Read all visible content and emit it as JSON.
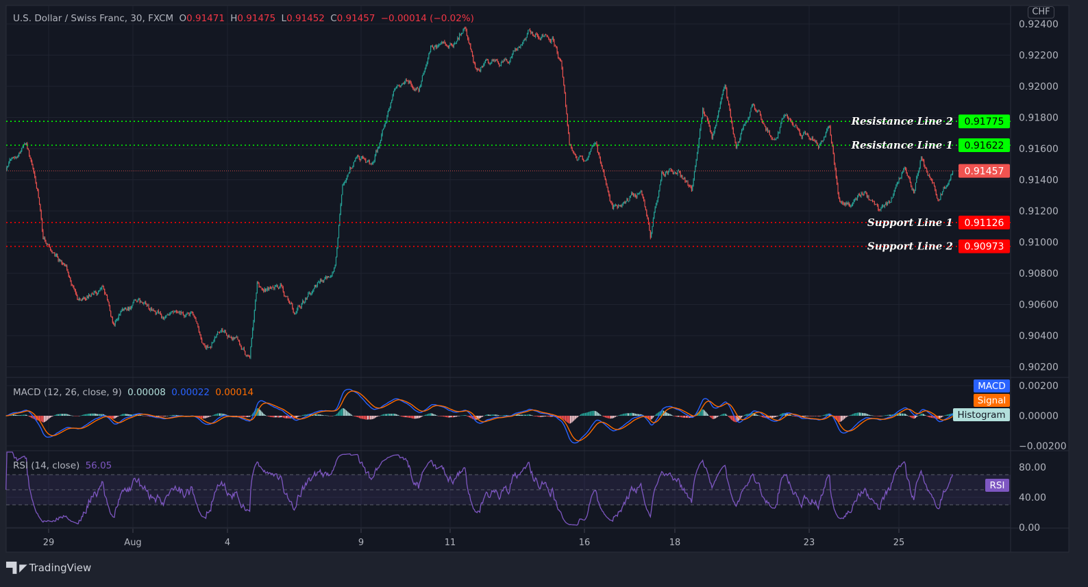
{
  "header": {
    "symbol": "U.S. Dollar / Swiss Franc, 30, FXCM",
    "open_label": "O",
    "open": "0.91471",
    "high_label": "H",
    "high": "0.91475",
    "low_label": "L",
    "low": "0.91452",
    "close_label": "C",
    "close": "0.91457",
    "change": "−0.00014 (−0.02%)"
  },
  "currency_badge": "CHF",
  "macd_legend": {
    "title": "MACD (12, 26, close, 9)",
    "histogram": "0.00008",
    "macd": "0.00022",
    "signal": "0.00014"
  },
  "rsi_legend": {
    "title": "RSI (14, close)",
    "value": "56.05"
  },
  "footer": {
    "brand": "TradingView"
  },
  "colors": {
    "up": "#26a69a",
    "down": "#ef5350",
    "resistance": "#00ff00",
    "support": "#ff0000",
    "last_price": "#f05350",
    "macd": "#2962ff",
    "signal": "#ff6d00",
    "histogram": "#b2dfdb",
    "rsi": "#7e57c2"
  },
  "chart_data": {
    "type": "candlestick",
    "title": "U.S. Dollar / Swiss Franc, 30, FXCM",
    "interval": "30",
    "price_axis": {
      "ticks": [
        "0.92400",
        "0.92200",
        "0.92000",
        "0.91800",
        "0.91600",
        "0.91400",
        "0.91200",
        "0.91000",
        "0.90800",
        "0.90600",
        "0.90400",
        "0.90200"
      ],
      "ylim": [
        0.9017,
        0.9246
      ]
    },
    "time_axis": {
      "ticks": [
        "29",
        "Aug",
        "4",
        "9",
        "11",
        "16",
        "18",
        "23",
        "25"
      ]
    },
    "price_path": [
      {
        "t": "Jul 28 01:00",
        "price": 0.9148
      },
      {
        "t": "Jul 28 12:00",
        "price": 0.9165
      },
      {
        "t": "Jul 28 18:00",
        "price": 0.9132
      },
      {
        "t": "Jul 28 21:00",
        "price": 0.9102
      },
      {
        "t": "Jul 29 09:00",
        "price": 0.9086
      },
      {
        "t": "Jul 29 17:00",
        "price": 0.9062
      },
      {
        "t": "Jul 30 07:00",
        "price": 0.9071
      },
      {
        "t": "Jul 30 13:00",
        "price": 0.9049
      },
      {
        "t": "Aug 2 02:00",
        "price": 0.9062
      },
      {
        "t": "Aug 2 16:00",
        "price": 0.9051
      },
      {
        "t": "Aug 3 06:00",
        "price": 0.9053
      },
      {
        "t": "Aug 3 13:00",
        "price": 0.9029
      },
      {
        "t": "Aug 3 20:00",
        "price": 0.9044
      },
      {
        "t": "Aug 4 07:00",
        "price": 0.9036
      },
      {
        "t": "Aug 4 12:00",
        "price": 0.9025
      },
      {
        "t": "Aug 4 16:00",
        "price": 0.9071
      },
      {
        "t": "Aug 5 05:00",
        "price": 0.9071
      },
      {
        "t": "Aug 5 12:00",
        "price": 0.9055
      },
      {
        "t": "Aug 5 23:00",
        "price": 0.9071
      },
      {
        "t": "Aug 6 10:00",
        "price": 0.9084
      },
      {
        "t": "Aug 6 14:00",
        "price": 0.9141
      },
      {
        "t": "Aug 6 21:00",
        "price": 0.9154
      },
      {
        "t": "Aug 9 07:00",
        "price": 0.915
      },
      {
        "t": "Aug 9 12:00",
        "price": 0.9172
      },
      {
        "t": "Aug 9 18:00",
        "price": 0.92
      },
      {
        "t": "Aug 10 01:00",
        "price": 0.9203
      },
      {
        "t": "Aug 10 07:00",
        "price": 0.9198
      },
      {
        "t": "Aug 10 14:00",
        "price": 0.9227
      },
      {
        "t": "Aug 11 01:00",
        "price": 0.9225
      },
      {
        "t": "Aug 11 08:00",
        "price": 0.9238
      },
      {
        "t": "Aug 11 14:00",
        "price": 0.9211
      },
      {
        "t": "Aug 11 23:00",
        "price": 0.9216
      },
      {
        "t": "Aug 12 07:00",
        "price": 0.9214
      },
      {
        "t": "Aug 12 18:00",
        "price": 0.9236
      },
      {
        "t": "Aug 13 07:00",
        "price": 0.9231
      },
      {
        "t": "Aug 13 12:00",
        "price": 0.9211
      },
      {
        "t": "Aug 13 16:00",
        "price": 0.9163
      },
      {
        "t": "Aug 13 23:00",
        "price": 0.9152
      },
      {
        "t": "Aug 16 06:00",
        "price": 0.9161
      },
      {
        "t": "Aug 16 12:00",
        "price": 0.9137
      },
      {
        "t": "Aug 16 15:00",
        "price": 0.9121
      },
      {
        "t": "Aug 16 23:00",
        "price": 0.9126
      },
      {
        "t": "Aug 17 06:00",
        "price": 0.9134
      },
      {
        "t": "Aug 17 11:00",
        "price": 0.9104
      },
      {
        "t": "Aug 17 17:00",
        "price": 0.9145
      },
      {
        "t": "Aug 18 02:00",
        "price": 0.9145
      },
      {
        "t": "Aug 18 09:00",
        "price": 0.9134
      },
      {
        "t": "Aug 18 15:00",
        "price": 0.9185
      },
      {
        "t": "Aug 18 20:00",
        "price": 0.9167
      },
      {
        "t": "Aug 19 03:00",
        "price": 0.92
      },
      {
        "t": "Aug 19 09:00",
        "price": 0.9161
      },
      {
        "t": "Aug 19 18:00",
        "price": 0.9187
      },
      {
        "t": "Aug 20 06:00",
        "price": 0.9163
      },
      {
        "t": "Aug 20 11:00",
        "price": 0.9183
      },
      {
        "t": "Aug 20 20:00",
        "price": 0.917
      },
      {
        "t": "Aug 23 05:00",
        "price": 0.9163
      },
      {
        "t": "Aug 23 11:00",
        "price": 0.9174
      },
      {
        "t": "Aug 23 16:00",
        "price": 0.913
      },
      {
        "t": "Aug 23 22:00",
        "price": 0.9124
      },
      {
        "t": "Aug 24 05:00",
        "price": 0.9132
      },
      {
        "t": "Aug 24 14:00",
        "price": 0.9119
      },
      {
        "t": "Aug 24 20:00",
        "price": 0.9128
      },
      {
        "t": "Aug 25 03:00",
        "price": 0.915
      },
      {
        "t": "Aug 25 08:00",
        "price": 0.9134
      },
      {
        "t": "Aug 25 12:00",
        "price": 0.9154
      },
      {
        "t": "Aug 25 21:00",
        "price": 0.9128
      },
      {
        "t": "Aug 26 05:00",
        "price": 0.91457
      }
    ],
    "horizontal_lines": [
      {
        "label": "Resistance Line 2",
        "value": "0.91775",
        "kind": "resistance"
      },
      {
        "label": "Resistance Line 1",
        "value": "0.91622",
        "kind": "resistance"
      },
      {
        "label": "",
        "value": "0.91457",
        "kind": "last_price"
      },
      {
        "label": "Support Line 1",
        "value": "0.91126",
        "kind": "support"
      },
      {
        "label": "Support Line 2",
        "value": "0.90973",
        "kind": "support"
      }
    ],
    "macd": {
      "axis_ticks": [
        "0.00200",
        "0.00000",
        "−0.00200"
      ],
      "labels": [
        "MACD",
        "Signal",
        "Histogram"
      ]
    },
    "rsi": {
      "axis_ticks": [
        "80.00",
        "40.00",
        "0.00"
      ],
      "bands": [
        70,
        50,
        30
      ],
      "label": "RSI"
    },
    "grid": true
  }
}
